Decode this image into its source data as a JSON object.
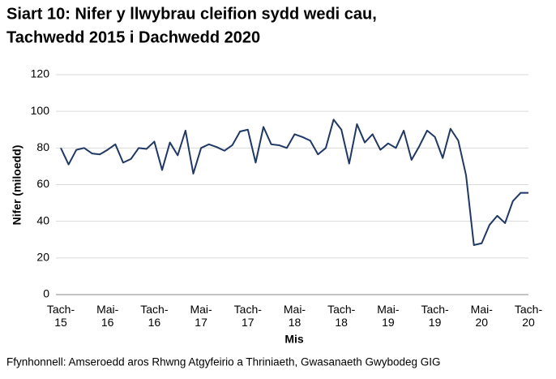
{
  "chart_data": {
    "type": "line",
    "title": [
      "Siart 10: Nifer y llwybrau cleifion sydd wedi cau,",
      "Tachwedd 2015 i Dachwedd 2020"
    ],
    "y_label": "Nifer (miloedd)",
    "x_label": "Mis",
    "source": "Ffynhonnell: Amseroedd aros Rhwng Atgyfeirio a Thriniaeth, Gwasanaeth Gwybodeg GIG",
    "categories": [
      "Tach-15",
      null,
      null,
      null,
      null,
      null,
      "Mai-16",
      null,
      null,
      null,
      null,
      null,
      "Tach-16",
      null,
      null,
      null,
      null,
      null,
      "Mai-17",
      null,
      null,
      null,
      null,
      null,
      "Tach-17",
      null,
      null,
      null,
      null,
      null,
      "Mai-18",
      null,
      null,
      null,
      null,
      null,
      "Tach-18",
      null,
      null,
      null,
      null,
      null,
      "Mai-19",
      null,
      null,
      null,
      null,
      null,
      "Tach-19",
      null,
      null,
      null,
      null,
      null,
      "Mai-20",
      null,
      null,
      null,
      null,
      null,
      "Tach-20"
    ],
    "series": [
      {
        "name": "Nifer",
        "color": "#203864",
        "values": [
          80,
          71,
          79,
          80,
          77,
          76.5,
          79,
          82,
          72,
          74,
          80,
          79.5,
          83.5,
          68,
          83,
          76,
          89.5,
          66,
          80,
          82,
          80.5,
          78.5,
          81.5,
          89,
          90,
          72,
          91.5,
          82,
          81.5,
          80,
          87.5,
          86,
          84,
          76.5,
          80,
          95.5,
          90,
          71.5,
          93,
          83,
          87.5,
          79,
          82.5,
          80,
          89.5,
          73.5,
          81,
          89.5,
          86,
          74.5,
          90.5,
          84,
          65,
          27,
          28,
          38,
          43,
          39,
          51,
          55.5,
          55.5
        ]
      }
    ],
    "ylim": [
      0,
      120
    ],
    "yticks": [
      0,
      20,
      40,
      60,
      80,
      100,
      120
    ],
    "grid": true
  }
}
